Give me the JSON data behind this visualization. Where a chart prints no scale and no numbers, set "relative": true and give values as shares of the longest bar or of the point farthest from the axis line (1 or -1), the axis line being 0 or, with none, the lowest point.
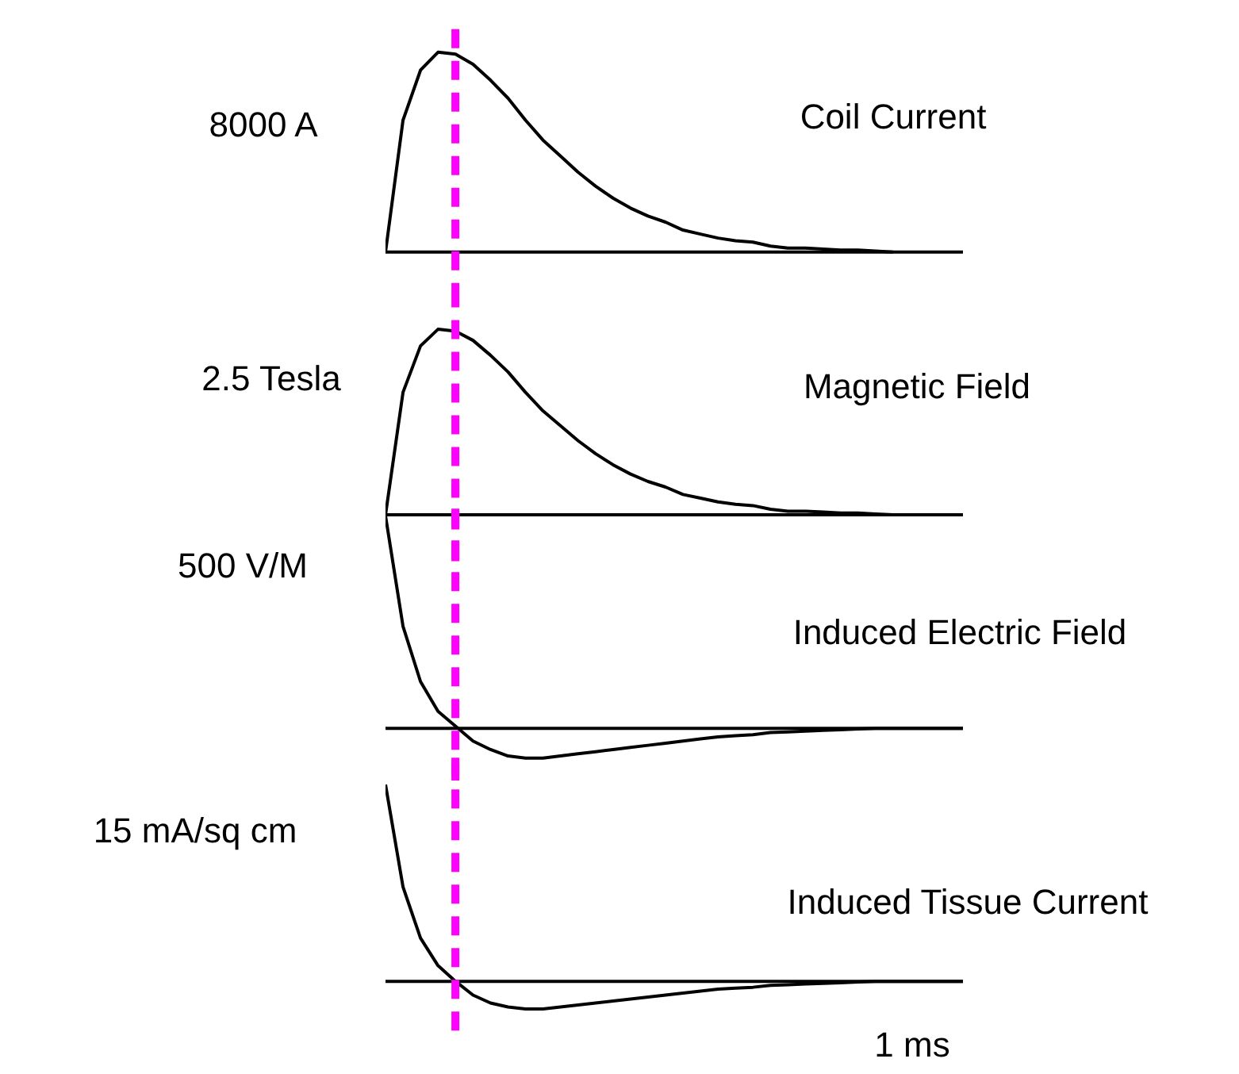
{
  "chart_data": [
    {
      "type": "line",
      "title": "Coil Current",
      "ylabel": "8000 A",
      "relative": true,
      "categories": [
        null,
        null,
        null,
        null,
        null,
        null,
        null,
        null,
        null,
        null,
        null,
        null,
        null,
        null,
        null,
        null,
        null,
        null,
        null,
        null,
        null,
        null,
        null,
        null,
        null,
        null,
        null,
        null,
        null,
        null,
        null,
        null,
        null,
        null
      ],
      "series": [
        {
          "color": "#000000",
          "values": [
            0,
            0.66,
            0.91,
            1,
            0.99,
            0.94,
            0.86,
            0.77,
            0.66,
            0.56,
            0.48,
            0.4,
            0.33,
            0.27,
            0.22,
            0.18,
            0.15,
            0.11,
            0.09,
            0.07,
            0.057,
            0.05,
            0.03,
            0.02,
            0.02,
            0.015,
            0.01,
            0.01,
            0.005,
            0,
            null,
            null,
            null,
            null
          ]
        }
      ],
      "tick_labels": false,
      "grid": false,
      "legend": false,
      "marker": "none",
      "line_style": "solid",
      "ref_lines": [
        {
          "axis": "x",
          "color": "#ff00ff",
          "line_style": "dashed"
        }
      ]
    },
    {
      "type": "line",
      "title": "Magnetic Field",
      "ylabel": "2.5 Tesla",
      "relative": true,
      "categories": [
        null,
        null,
        null,
        null,
        null,
        null,
        null,
        null,
        null,
        null,
        null,
        null,
        null,
        null,
        null,
        null,
        null,
        null,
        null,
        null,
        null,
        null,
        null,
        null,
        null,
        null,
        null,
        null,
        null,
        null,
        null,
        null,
        null,
        null
      ],
      "series": [
        {
          "color": "#000000",
          "values": [
            0,
            0.66,
            0.91,
            1,
            0.99,
            0.94,
            0.86,
            0.77,
            0.66,
            0.56,
            0.48,
            0.4,
            0.33,
            0.27,
            0.22,
            0.18,
            0.15,
            0.11,
            0.09,
            0.07,
            0.057,
            0.05,
            0.03,
            0.02,
            0.02,
            0.015,
            0.01,
            0.01,
            0.005,
            0,
            null,
            null,
            null,
            null
          ]
        }
      ],
      "tick_labels": false,
      "grid": false,
      "legend": false,
      "marker": "none",
      "line_style": "solid",
      "ref_lines": [
        {
          "axis": "x",
          "color": "#ff00ff",
          "line_style": "dashed"
        }
      ]
    },
    {
      "type": "line",
      "title": "Induced Electric Field",
      "ylabel": "500 V/M",
      "relative": true,
      "categories": [
        null,
        null,
        null,
        null,
        null,
        null,
        null,
        null,
        null,
        null,
        null,
        null,
        null,
        null,
        null,
        null,
        null,
        null,
        null,
        null,
        null,
        null,
        null,
        null,
        null,
        null,
        null,
        null,
        null,
        null,
        null,
        null,
        null,
        null
      ],
      "series": [
        {
          "color": "#000000",
          "values": [
            1,
            0.48,
            0.22,
            0.08,
            0.01,
            -0.06,
            -0.1,
            -0.13,
            -0.14,
            -0.14,
            -0.13,
            -0.12,
            -0.11,
            -0.1,
            -0.09,
            -0.08,
            -0.07,
            -0.06,
            -0.05,
            -0.04,
            -0.035,
            -0.03,
            -0.02,
            -0.017,
            -0.013,
            -0.01,
            -0.007,
            -0.003,
            0,
            0,
            0,
            0,
            0,
            0
          ]
        }
      ],
      "tick_labels": false,
      "grid": false,
      "legend": false,
      "marker": "none",
      "line_style": "solid",
      "ref_lines": [
        {
          "axis": "x",
          "color": "#ff00ff",
          "line_style": "dashed"
        }
      ]
    },
    {
      "type": "line",
      "title": "Induced Tissue Current",
      "ylabel": "15 mA/sq cm",
      "relative": true,
      "categories": [
        null,
        null,
        null,
        null,
        null,
        null,
        null,
        null,
        null,
        null,
        null,
        null,
        null,
        null,
        null,
        null,
        null,
        null,
        null,
        null,
        null,
        null,
        null,
        null,
        null,
        null,
        null,
        null,
        null,
        null,
        null,
        null,
        null,
        null
      ],
      "series": [
        {
          "color": "#000000",
          "values": [
            1,
            0.48,
            0.22,
            0.08,
            0,
            -0.07,
            -0.11,
            -0.13,
            -0.14,
            -0.14,
            -0.13,
            -0.12,
            -0.11,
            -0.1,
            -0.09,
            -0.08,
            -0.07,
            -0.06,
            -0.05,
            -0.04,
            -0.035,
            -0.03,
            -0.02,
            -0.017,
            -0.013,
            -0.01,
            -0.007,
            -0.003,
            0,
            0,
            0,
            0,
            0,
            0
          ]
        }
      ],
      "annotations": [
        "1 ms"
      ],
      "tick_labels": false,
      "grid": false,
      "legend": false,
      "marker": "none",
      "line_style": "solid",
      "ref_lines": [
        {
          "axis": "x",
          "color": "#ff00ff",
          "line_style": "dashed"
        }
      ]
    }
  ]
}
